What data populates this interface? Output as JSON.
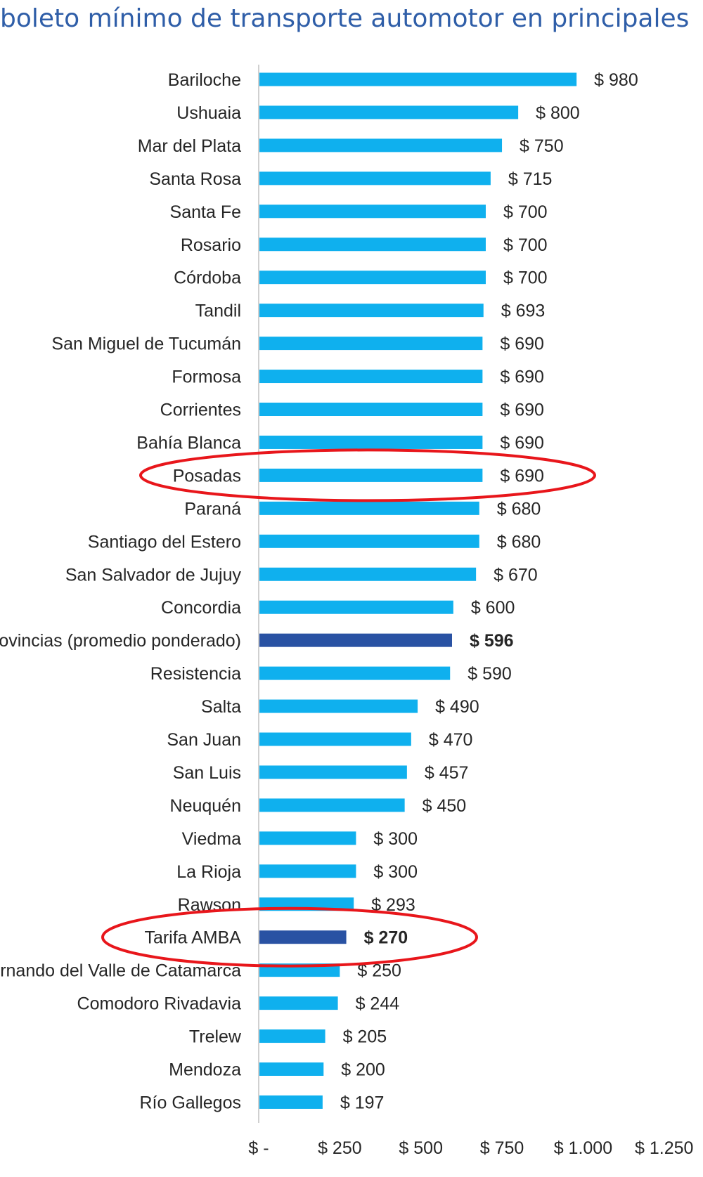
{
  "title": "boleto mínimo de transporte automotor en principales",
  "colors": {
    "title": "#2f5ea8",
    "bar": "#0fb0ee",
    "bar_highlight": "#2952a3",
    "axis": "#d0d0d0",
    "annotation": "#e8161b"
  },
  "chart_data": {
    "type": "bar",
    "orientation": "horizontal",
    "categories": [
      "Bariloche",
      "Ushuaia",
      "Mar del Plata",
      "Santa Rosa",
      "Santa Fe",
      "Rosario",
      "Córdoba",
      "Tandil",
      "San Miguel de Tucumán",
      "Formosa",
      "Corrientes",
      "Bahía Blanca",
      "Posadas",
      "Paraná",
      "Santiago del Estero",
      "San Salvador de Jujuy",
      "Concordia",
      "Provincias (promedio ponderado)",
      "Resistencia",
      "Salta",
      "San Juan",
      "San Luis",
      "Neuquén",
      "Viedma",
      "La Rioja",
      "Rawson",
      "Tarifa AMBA",
      "San Fernando del Valle de Catamarca",
      "Comodoro Rivadavia",
      "Trelew",
      "Mendoza",
      "Río Gallegos"
    ],
    "values": [
      980,
      800,
      750,
      715,
      700,
      700,
      700,
      693,
      690,
      690,
      690,
      690,
      690,
      680,
      680,
      670,
      600,
      596,
      590,
      490,
      470,
      457,
      450,
      300,
      300,
      293,
      270,
      250,
      244,
      205,
      200,
      197
    ],
    "value_labels": [
      "$ 980",
      "$ 800",
      "$ 750",
      "$ 715",
      "$ 700",
      "$ 700",
      "$ 700",
      "$ 693",
      "$ 690",
      "$ 690",
      "$ 690",
      "$ 690",
      "$ 690",
      "$ 680",
      "$ 680",
      "$ 670",
      "$ 600",
      "$ 596",
      "$ 590",
      "$ 490",
      "$ 470",
      "$ 457",
      "$ 450",
      "$ 300",
      "$ 300",
      "$ 293",
      "$ 270",
      "$ 250",
      "$ 244",
      "$ 205",
      "$ 200",
      "$ 197"
    ],
    "highlighted_bars": [
      "Provincias (promedio ponderado)",
      "Tarifa AMBA"
    ],
    "circled_categories": [
      "Posadas",
      "Tarifa AMBA"
    ],
    "xlim": [
      0,
      1250
    ],
    "xticks": [
      0,
      250,
      500,
      750,
      1000,
      1250
    ],
    "xtick_labels": [
      "$ -",
      "$ 250",
      "$ 500",
      "$ 750",
      "$ 1.000",
      "$ 1.250"
    ],
    "grid": false,
    "legend": "none"
  }
}
